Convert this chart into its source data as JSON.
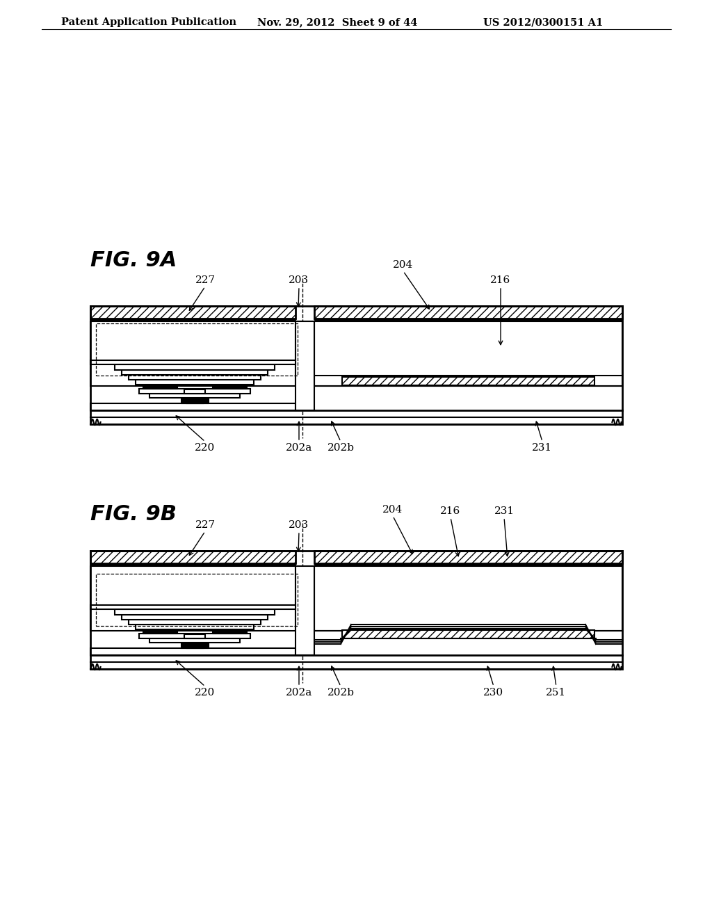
{
  "header_left": "Patent Application Publication",
  "header_mid": "Nov. 29, 2012  Sheet 9 of 44",
  "header_right": "US 2012/0300151 A1",
  "fig_9a_label": "FIG. 9A",
  "fig_9b_label": "FIG. 9B",
  "bg_color": "#ffffff",
  "line_color": "#000000",
  "label_220_a": "220",
  "label_202a_a": "202a",
  "label_202b_a": "202b",
  "label_231_a": "231",
  "label_227_a": "227",
  "label_203_a": "203",
  "label_204_a": "204",
  "label_216_a": "216",
  "label_227_b": "227",
  "label_203_b": "203",
  "label_204_b": "204",
  "label_216_b": "216",
  "label_231_b": "231",
  "label_220_b": "220",
  "label_202a_b": "202a",
  "label_202b_b": "202b",
  "label_230_b": "230",
  "label_251_b": "251"
}
